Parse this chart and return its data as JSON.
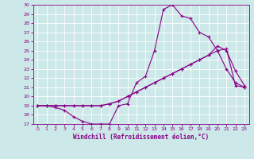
{
  "xlabel": "Windchill (Refroidissement éolien,°C)",
  "xlim": [
    -0.5,
    23.5
  ],
  "ylim": [
    17,
    30
  ],
  "xticks": [
    0,
    1,
    2,
    3,
    4,
    5,
    6,
    7,
    8,
    9,
    10,
    11,
    12,
    13,
    14,
    15,
    16,
    17,
    18,
    19,
    20,
    21,
    22,
    23
  ],
  "yticks": [
    17,
    18,
    19,
    20,
    21,
    22,
    23,
    24,
    25,
    26,
    27,
    28,
    29,
    30
  ],
  "bg_color": "#cce8e8",
  "grid_color": "#ffffff",
  "line_color": "#880088",
  "line1_x": [
    0,
    1,
    2,
    3,
    4,
    5,
    6,
    7,
    8,
    9,
    10,
    11,
    12,
    13,
    14,
    15,
    16,
    17,
    18,
    19,
    20,
    21,
    22,
    23
  ],
  "line1_y": [
    19,
    19,
    18.8,
    18.5,
    17.8,
    17.3,
    17.0,
    17.0,
    17.0,
    19.0,
    19.2,
    21.5,
    22.2,
    25.0,
    29.5,
    30.0,
    28.8,
    28.5,
    27.0,
    26.5,
    25.0,
    23.0,
    21.5,
    21.0
  ],
  "line2_x": [
    0,
    1,
    2,
    3,
    4,
    5,
    6,
    7,
    8,
    9,
    10,
    11,
    12,
    13,
    14,
    15,
    16,
    17,
    18,
    19,
    20,
    21,
    22,
    23
  ],
  "line2_y": [
    19,
    19,
    19,
    19,
    19,
    19,
    19,
    19,
    19.2,
    19.5,
    20.0,
    20.5,
    21.0,
    21.5,
    22.0,
    22.5,
    23.0,
    23.5,
    24.0,
    24.5,
    25.0,
    25.2,
    21.2,
    21.0
  ],
  "line3_x": [
    0,
    1,
    2,
    3,
    4,
    5,
    6,
    7,
    8,
    9,
    10,
    11,
    12,
    13,
    14,
    15,
    16,
    17,
    18,
    19,
    20,
    21,
    22,
    23
  ],
  "line3_y": [
    19,
    19,
    19,
    19,
    19,
    19,
    19,
    19,
    19.2,
    19.5,
    20.0,
    20.5,
    21.0,
    21.5,
    22.0,
    22.5,
    23.0,
    23.5,
    24.0,
    24.5,
    25.5,
    25.0,
    22.8,
    21.2
  ]
}
